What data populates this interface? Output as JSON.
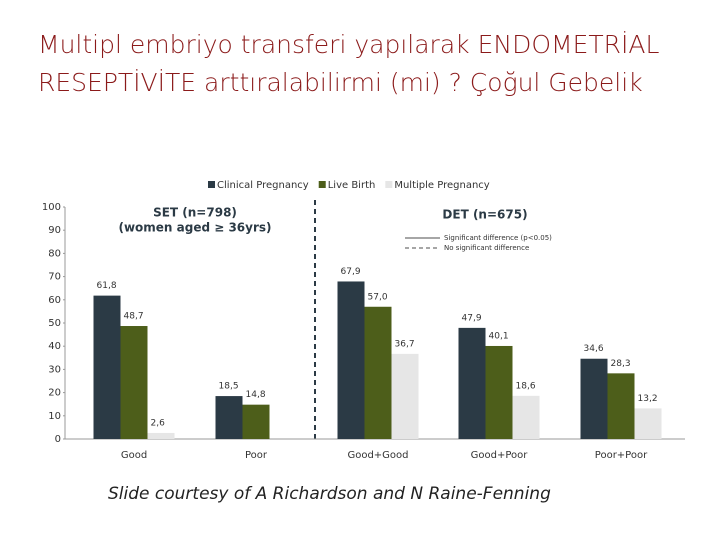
{
  "slide": {
    "title_lines": [
      "Multipl embriyo transferi yapılarak ENDOMETRİAL",
      "RESEPTİVİTE arttıralabilirmi (mi) ? Çoğul Gebelik"
    ],
    "footer": "Slide courtesy of A Richardson and N Raine-Fenning"
  },
  "chart_data": {
    "type": "bar",
    "categories": [
      "Good",
      "Poor",
      "Good+Good",
      "Good+Poor",
      "Poor+Poor"
    ],
    "series": [
      {
        "name": "Clinical Pregnancy",
        "color": "#2b3a45",
        "values": [
          61.8,
          18.5,
          67.9,
          47.9,
          34.6
        ],
        "value_labels": [
          "61,8",
          "18,5",
          "67,9",
          "47,9",
          "34,6"
        ]
      },
      {
        "name": "Live Birth",
        "color": "#4d5e1a",
        "values": [
          48.7,
          14.8,
          57.0,
          40.1,
          28.3
        ],
        "value_labels": [
          "48,7",
          "14,8",
          "57,0",
          "40,1",
          "28,3"
        ]
      },
      {
        "name": "Multiple Pregnancy",
        "color": "#e6e6e6",
        "values": [
          2.6,
          null,
          36.7,
          18.6,
          13.2
        ],
        "value_labels": [
          "2,6",
          null,
          "36,7",
          "18,6",
          "13,2"
        ]
      }
    ],
    "ylim": [
      0,
      100
    ],
    "yticks": [
      0,
      10,
      20,
      30,
      40,
      50,
      60,
      70,
      80,
      90,
      100
    ],
    "annotations": [
      "SET (n=798)",
      "(women aged ≥ 36yrs)",
      "DET (n=675)",
      "Significant difference (p<0.05)",
      "No significant difference"
    ]
  }
}
